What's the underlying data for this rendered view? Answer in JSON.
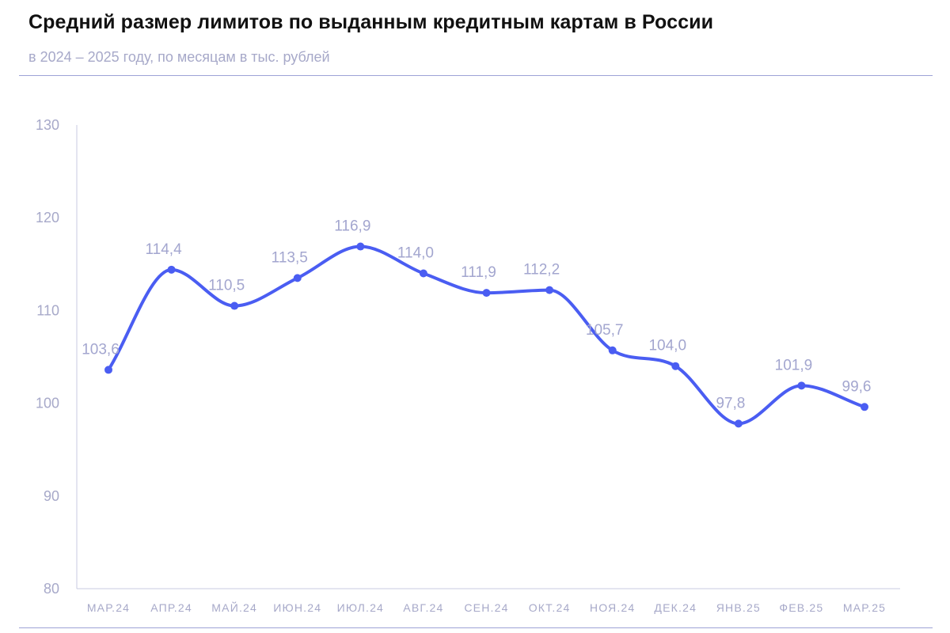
{
  "header": {
    "title": "Средний размер лимитов по выданным кредитным картам в России",
    "subtitle": "в 2024 – 2025 году, по месяцам в тыс. рублей"
  },
  "chart_data": {
    "type": "line",
    "title": "Средний размер лимитов по выданным кредитным картам в России",
    "subtitle": "в 2024 – 2025 году, по месяцам в тыс. рублей",
    "xlabel": "",
    "ylabel": "",
    "categories": [
      "МАР.24",
      "АПР.24",
      "МАЙ.24",
      "ИЮН.24",
      "ИЮЛ.24",
      "АВГ.24",
      "СЕН.24",
      "ОКТ.24",
      "НОЯ.24",
      "ДЕК.24",
      "ЯНВ.25",
      "ФЕВ.25",
      "МАР.25"
    ],
    "series": [
      {
        "values": [
          103.6,
          114.4,
          110.5,
          113.5,
          116.9,
          114.0,
          111.9,
          112.2,
          105.7,
          104.0,
          97.8,
          101.9,
          99.6
        ],
        "labels": [
          "103,6",
          "114,4",
          "110,5",
          "113,5",
          "116,9",
          "114,0",
          "111,9",
          "112,2",
          "105,7",
          "104,0",
          "97,8",
          "101,9",
          "99,6"
        ],
        "color": "#4a5df2"
      }
    ],
    "ylim": [
      80,
      130
    ],
    "yticks": [
      80,
      90,
      100,
      110,
      120,
      130
    ],
    "grid": false,
    "legend": "none"
  }
}
